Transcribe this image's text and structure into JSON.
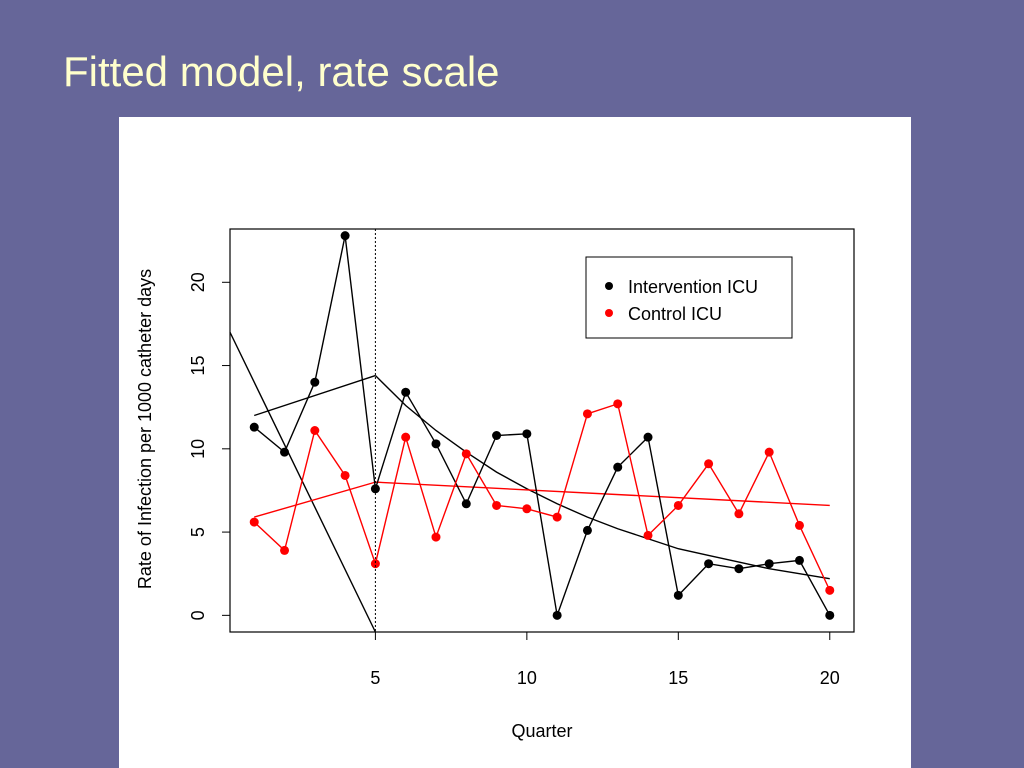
{
  "slide": {
    "title": "Fitted model, rate scale",
    "background_color": "#666699",
    "title_color": "#ffffcc"
  },
  "chart_data": {
    "type": "line",
    "xlabel": "Quarter",
    "ylabel": "Rate of Infection per 1000 catheter days",
    "xlim": [
      0.2,
      20.8
    ],
    "ylim": [
      -1,
      23.2
    ],
    "xticks": [
      5,
      10,
      15,
      20
    ],
    "yticks": [
      0,
      5,
      10,
      15,
      20
    ],
    "intervention_marker_x": 5,
    "legend_position": "top-right",
    "grid": false,
    "series": [
      {
        "name": "Intervention ICU",
        "color": "#000000",
        "x": [
          1,
          2,
          3,
          4,
          5,
          6,
          7,
          8,
          9,
          10,
          11,
          12,
          13,
          14,
          15,
          16,
          17,
          18,
          19,
          20
        ],
        "y": [
          11.3,
          9.8,
          14.0,
          22.8,
          7.6,
          13.4,
          10.3,
          6.7,
          10.8,
          10.9,
          0.0,
          5.1,
          8.9,
          10.7,
          1.2,
          3.1,
          2.8,
          3.1,
          3.3,
          0.0
        ]
      },
      {
        "name": "Control ICU",
        "color": "#ff0000",
        "x": [
          1,
          2,
          3,
          4,
          5,
          6,
          7,
          8,
          9,
          10,
          11,
          12,
          13,
          14,
          15,
          16,
          17,
          18,
          19,
          20
        ],
        "y": [
          5.6,
          3.9,
          11.1,
          8.4,
          3.1,
          10.7,
          4.7,
          9.7,
          6.6,
          6.4,
          5.9,
          12.1,
          12.7,
          4.8,
          6.6,
          9.1,
          6.1,
          9.8,
          5.4,
          1.5
        ]
      }
    ],
    "fitted_lines": [
      {
        "label": "Intervention ICU pre-intervention trend",
        "color": "#000000",
        "x": [
          1,
          5
        ],
        "y": [
          12.0,
          14.4
        ]
      },
      {
        "label": "Intervention ICU post-intervention decay",
        "color": "#000000",
        "x": [
          5,
          6,
          7,
          8,
          9,
          10,
          11,
          12,
          13,
          14,
          15,
          16,
          17,
          18,
          19,
          20
        ],
        "y": [
          14.4,
          12.6,
          11.1,
          9.8,
          8.6,
          7.6,
          6.7,
          5.9,
          5.2,
          4.6,
          4.0,
          3.6,
          3.2,
          2.8,
          2.5,
          2.2
        ]
      },
      {
        "label": "Intervention ICU counterfactual",
        "color": "#000000",
        "x": [
          0.2,
          5
        ],
        "y": [
          17.0,
          -1.0
        ]
      },
      {
        "label": "Control ICU pre-intervention trend",
        "color": "#ff0000",
        "x": [
          1,
          5
        ],
        "y": [
          5.9,
          8.0
        ]
      },
      {
        "label": "Control ICU post-intervention trend",
        "color": "#ff0000",
        "x": [
          5,
          20
        ],
        "y": [
          8.0,
          6.6
        ]
      }
    ]
  }
}
